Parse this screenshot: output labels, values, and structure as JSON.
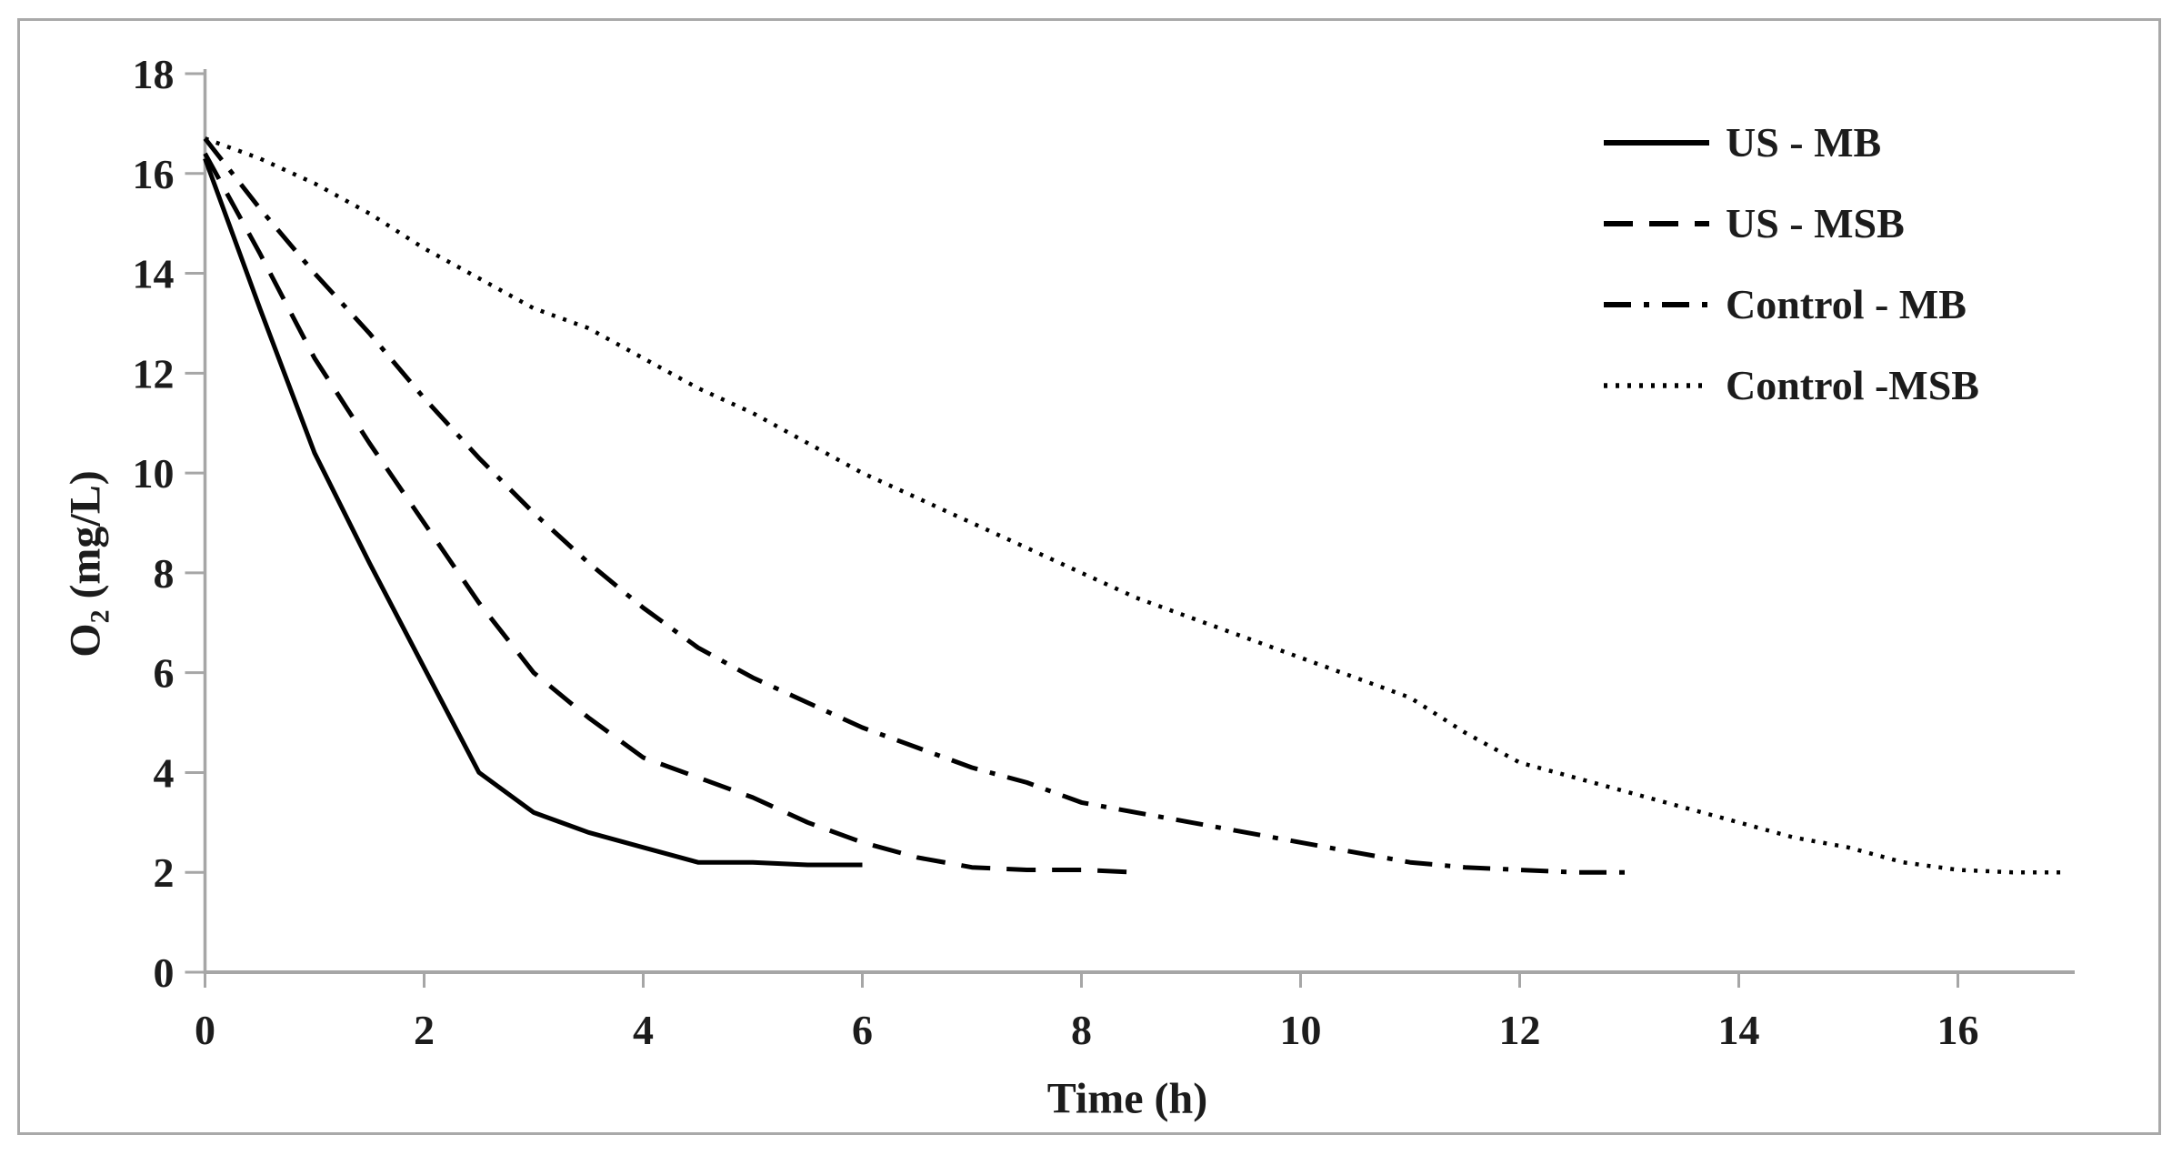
{
  "figure": {
    "background": "#ffffff",
    "border_color": "#a9a9a9",
    "axis_color": "#a6a6a6",
    "text_color": "#1c1c1c",
    "line_color": "#000000"
  },
  "axes": {
    "y_title_main": "O",
    "y_title_sub": "2",
    "y_title_rest": " (mg/L)",
    "x_ticks": [
      0,
      2,
      4,
      6,
      8,
      10,
      12,
      14,
      16
    ],
    "y_ticks": [
      0,
      2,
      4,
      6,
      8,
      10,
      12,
      14,
      16,
      18
    ]
  },
  "chart_data": {
    "type": "line",
    "title": "",
    "xlabel": "Time (h)",
    "ylabel": "O2 (mg/L)",
    "xlim": [
      0,
      17
    ],
    "ylim": [
      0,
      18
    ],
    "grid": false,
    "legend_position": "upper right",
    "x_unit": "h",
    "series": [
      {
        "name": "US - MB",
        "style": "solid",
        "t_start": 0,
        "t_step": 0.5,
        "values": [
          16.3,
          13.3,
          10.4,
          8.2,
          6.1,
          4.0,
          3.2,
          2.8,
          2.5,
          2.2,
          2.2,
          2.15,
          2.15
        ]
      },
      {
        "name": "US - MSB",
        "style": "dashed",
        "t_start": 0,
        "t_step": 0.5,
        "values": [
          16.4,
          14.4,
          12.3,
          10.6,
          9.0,
          7.4,
          6.0,
          5.1,
          4.3,
          3.9,
          3.5,
          3.0,
          2.6,
          2.3,
          2.1,
          2.05,
          2.05,
          2.0
        ]
      },
      {
        "name": "Control - MB",
        "style": "dashdot",
        "t_start": 0,
        "t_step": 0.5,
        "values": [
          16.7,
          15.3,
          14.0,
          12.8,
          11.5,
          10.3,
          9.2,
          8.2,
          7.3,
          6.5,
          5.9,
          5.4,
          4.9,
          4.5,
          4.1,
          3.8,
          3.4,
          3.2,
          3.0,
          2.8,
          2.6,
          2.4,
          2.2,
          2.1,
          2.05,
          2.0,
          2.0
        ]
      },
      {
        "name": "Control -MSB",
        "style": "dotted",
        "t_start": 0,
        "t_step": 0.5,
        "values": [
          16.7,
          16.3,
          15.8,
          15.2,
          14.5,
          13.9,
          13.3,
          12.9,
          12.3,
          11.7,
          11.2,
          10.6,
          10.0,
          9.5,
          9.0,
          8.5,
          8.0,
          7.5,
          7.1,
          6.7,
          6.3,
          5.9,
          5.5,
          4.8,
          4.2,
          3.9,
          3.6,
          3.3,
          3.0,
          2.7,
          2.5,
          2.2,
          2.05,
          2.0,
          2.0
        ]
      }
    ]
  }
}
